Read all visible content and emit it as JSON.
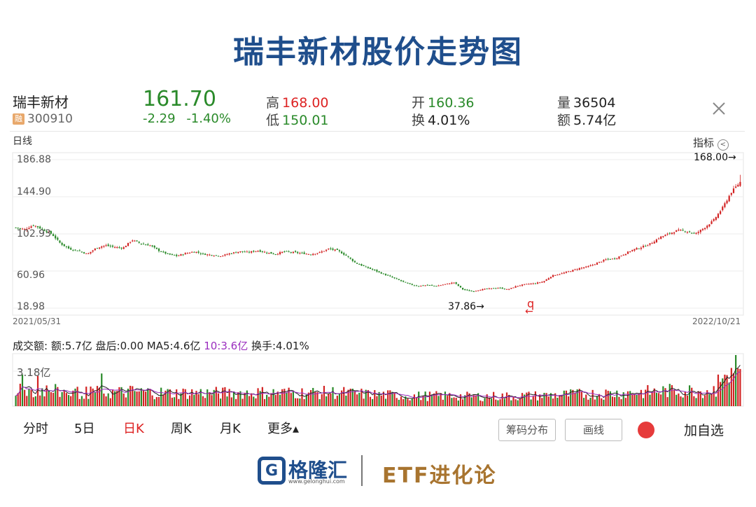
{
  "page": {
    "title": "瑞丰新材股价走势图"
  },
  "quote": {
    "name": "瑞丰新材",
    "badge": "融",
    "code": "300910",
    "price": "161.70",
    "change": "-2.29",
    "change_pct": "-1.40%",
    "high_label": "高",
    "high": "168.00",
    "low_label": "低",
    "low": "150.01",
    "open_label": "开",
    "open": "160.36",
    "turnover_label": "换",
    "turnover": "4.01%",
    "volume_label": "量",
    "volume": "36504",
    "amount_label": "额",
    "amount": "5.74亿"
  },
  "chart": {
    "period_label": "日线",
    "indicator_label": "指标",
    "max_annotation": "168.00→",
    "min_annotation": "37.86→",
    "marker_label": "q",
    "marker_arrow": "←",
    "date_start": "2021/05/31",
    "date_end": "2022/10/21",
    "y_ticks": [
      "186.88",
      "144.90",
      "102.93",
      "60.96",
      "18.98"
    ],
    "vol_info": {
      "label": "成交额:",
      "amount": "额:5.7亿",
      "after_hours": "盘后:0.00",
      "ma5": "MA5:4.6亿",
      "ma10": "10:3.6亿",
      "turnover": "换手:4.01%"
    },
    "vol_tick": "3.18亿"
  },
  "chart_data": {
    "type": "candlestick",
    "x_range": [
      "2021/05/31",
      "2022/10/21"
    ],
    "ylim": [
      18.98,
      186.88
    ],
    "y_ticks": [
      186.88,
      144.9,
      102.93,
      60.96,
      18.98
    ],
    "notable_points": [
      {
        "label": "high",
        "value": 168.0,
        "date": "2022/10/21"
      },
      {
        "label": "low",
        "value": 37.86
      }
    ],
    "closing_price_trend": [
      110,
      108,
      113,
      108,
      103,
      92,
      86,
      84,
      80,
      87,
      90,
      88,
      87,
      96,
      92,
      90,
      84,
      80,
      78,
      81,
      83,
      80,
      79,
      78,
      81,
      83,
      82,
      84,
      82,
      80,
      83,
      82,
      81,
      80,
      82,
      86,
      84,
      78,
      70,
      66,
      62,
      58,
      54,
      50,
      46,
      44,
      45,
      44,
      46,
      48,
      40,
      37.86,
      40,
      41,
      42,
      40,
      44,
      46,
      47,
      49,
      56,
      58,
      61,
      64,
      66,
      70,
      74,
      75,
      80,
      85,
      88,
      92,
      99,
      103,
      107,
      106,
      103,
      110,
      118,
      132,
      150,
      161.7
    ],
    "volume_ma": [
      "MA5",
      "MA10"
    ]
  },
  "tabs": [
    "分时",
    "5日",
    "日K",
    "周K",
    "月K",
    "更多▴"
  ],
  "active_tab": "日K",
  "buttons": {
    "chip": "筹码分布",
    "draw": "画线",
    "add": "加自选"
  },
  "footer": {
    "logo_glyph": "G",
    "name": "格隆汇",
    "url": "www.gelonghui.com",
    "brand": "ETF进化论"
  },
  "colors": {
    "up": "#d22222",
    "down": "#2a8a2a",
    "title": "#1f4e8c",
    "ma5": "#222222",
    "ma10": "#9b2fbf"
  }
}
